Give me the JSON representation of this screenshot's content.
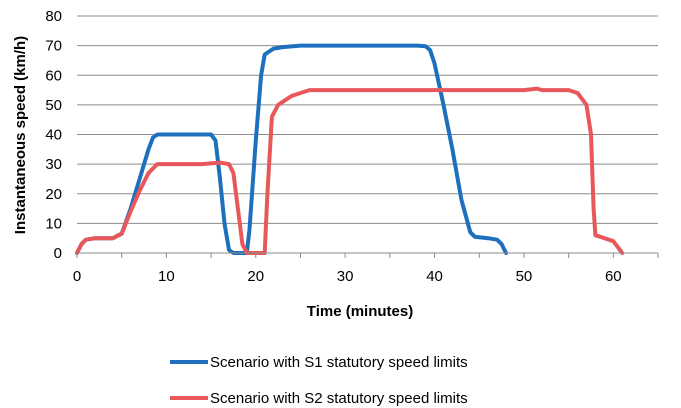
{
  "chart_data": {
    "type": "line",
    "xlabel": "Time (minutes)",
    "ylabel": "Instantaneous speed (km/h)",
    "xlim": [
      0,
      65
    ],
    "ylim": [
      0,
      80
    ],
    "x_ticks": [
      0,
      10,
      20,
      30,
      40,
      50,
      60
    ],
    "y_ticks": [
      0,
      10,
      20,
      30,
      40,
      50,
      60,
      70,
      80
    ],
    "grid": "horizontal",
    "legend_position": "bottom",
    "series": [
      {
        "name": "Scenario with S1 statutory speed limits",
        "color": "#1f6fbf",
        "points": [
          [
            0,
            0
          ],
          [
            0.5,
            3
          ],
          [
            1,
            4.5
          ],
          [
            2,
            5
          ],
          [
            3,
            5
          ],
          [
            4,
            5
          ],
          [
            5,
            6.5
          ],
          [
            6,
            15
          ],
          [
            7,
            25
          ],
          [
            8,
            35
          ],
          [
            8.5,
            39
          ],
          [
            9,
            40
          ],
          [
            10,
            40
          ],
          [
            11,
            40
          ],
          [
            12,
            40
          ],
          [
            13,
            40
          ],
          [
            14,
            40
          ],
          [
            15,
            40
          ],
          [
            15.5,
            38
          ],
          [
            16,
            25
          ],
          [
            16.5,
            10
          ],
          [
            17,
            1
          ],
          [
            17.5,
            0
          ],
          [
            18.5,
            0
          ],
          [
            19,
            0
          ],
          [
            19.3,
            8
          ],
          [
            20,
            38
          ],
          [
            20.6,
            60
          ],
          [
            21,
            67
          ],
          [
            22,
            69
          ],
          [
            23,
            69.5
          ],
          [
            25,
            70
          ],
          [
            30,
            70
          ],
          [
            35,
            70
          ],
          [
            38,
            70
          ],
          [
            39,
            69.8
          ],
          [
            39.5,
            68.5
          ],
          [
            40,
            64
          ],
          [
            41,
            50
          ],
          [
            42,
            35
          ],
          [
            43,
            18
          ],
          [
            44,
            7
          ],
          [
            44.5,
            5.5
          ],
          [
            46,
            5
          ],
          [
            47,
            4.5
          ],
          [
            47.5,
            3
          ],
          [
            48,
            0
          ]
        ]
      },
      {
        "name": "Scenario with S2 statutory speed limits",
        "color": "#e8585a",
        "points": [
          [
            0,
            0
          ],
          [
            0.5,
            3
          ],
          [
            1,
            4.5
          ],
          [
            2,
            5
          ],
          [
            3,
            5
          ],
          [
            4,
            5
          ],
          [
            5,
            6.5
          ],
          [
            6,
            14
          ],
          [
            7,
            21
          ],
          [
            8,
            27
          ],
          [
            9,
            30
          ],
          [
            10,
            30
          ],
          [
            12,
            30
          ],
          [
            14,
            30
          ],
          [
            16,
            30.5
          ],
          [
            17,
            30
          ],
          [
            17.5,
            27
          ],
          [
            18,
            15
          ],
          [
            18.5,
            3
          ],
          [
            19,
            0
          ],
          [
            21,
            0
          ],
          [
            21.3,
            20
          ],
          [
            21.8,
            46
          ],
          [
            22.5,
            50
          ],
          [
            24,
            53
          ],
          [
            25,
            54
          ],
          [
            26,
            55
          ],
          [
            30,
            55
          ],
          [
            40,
            55
          ],
          [
            45,
            55
          ],
          [
            50,
            55
          ],
          [
            51.5,
            55.5
          ],
          [
            52,
            55
          ],
          [
            54,
            55
          ],
          [
            55,
            55
          ],
          [
            56,
            54
          ],
          [
            57,
            50
          ],
          [
            57.5,
            40
          ],
          [
            57.8,
            15
          ],
          [
            58,
            6
          ],
          [
            59,
            5
          ],
          [
            60,
            4
          ],
          [
            60.5,
            2
          ],
          [
            61,
            0
          ]
        ]
      }
    ]
  }
}
